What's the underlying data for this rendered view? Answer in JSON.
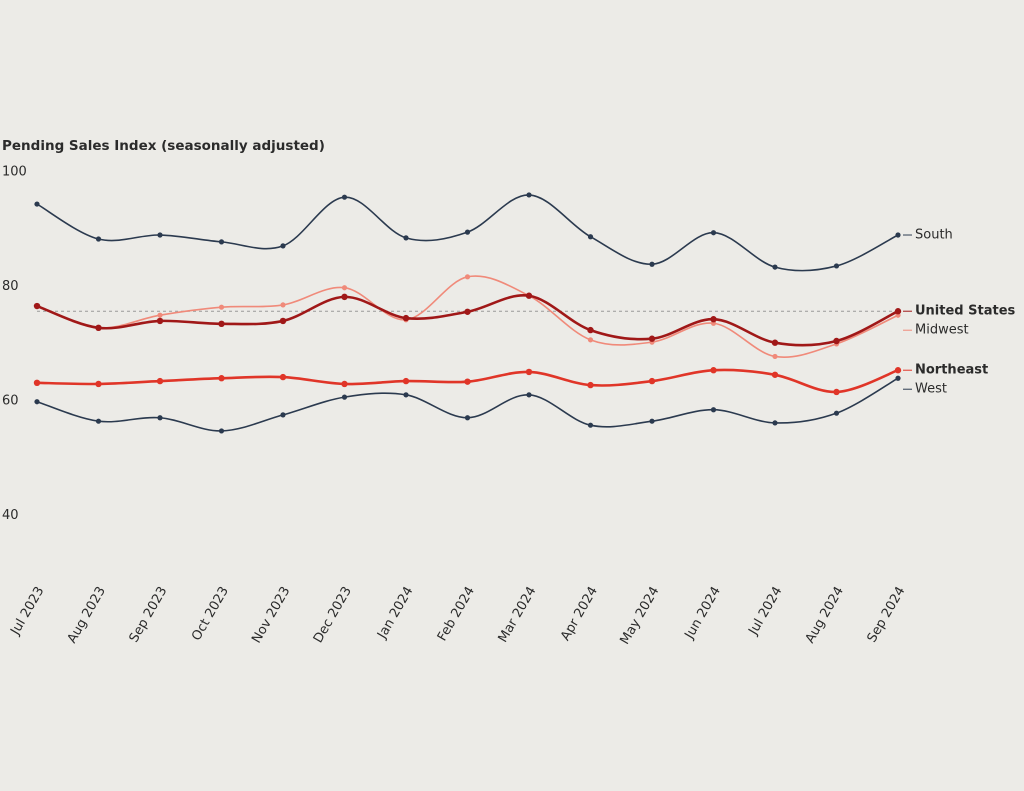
{
  "chart_data": {
    "type": "line",
    "title": "Pending Sales Index (seasonally adjusted)",
    "categories": [
      "Jul 2023",
      "Aug 2023",
      "Sep 2023",
      "Oct 2023",
      "Nov 2023",
      "Dec 2023",
      "Jan 2024",
      "Feb 2024",
      "Mar 2024",
      "Apr 2024",
      "May 2024",
      "Jun 2024",
      "Jul 2024",
      "Aug 2024",
      "Sep 2024"
    ],
    "series": [
      {
        "name": "South",
        "color": "#2b3a4f",
        "bold": false,
        "values": [
          94.4,
          88.3,
          89.0,
          87.8,
          87.1,
          95.6,
          88.5,
          89.5,
          96.0,
          88.7,
          83.9,
          89.4,
          83.4,
          83.6,
          89.0
        ]
      },
      {
        "name": "Midwest",
        "color": "#f08a7a",
        "bold": false,
        "values": [
          76.6,
          72.8,
          75.0,
          76.4,
          76.8,
          79.8,
          74.2,
          81.7,
          78.4,
          70.7,
          70.3,
          73.6,
          67.8,
          70.0,
          75.0
        ]
      },
      {
        "name": "United States",
        "color": "#a01818",
        "bold": true,
        "values": [
          76.6,
          72.8,
          74.0,
          73.5,
          74.0,
          78.2,
          74.5,
          75.6,
          78.4,
          72.4,
          70.9,
          74.3,
          70.2,
          70.5,
          75.7
        ]
      },
      {
        "name": "Northeast",
        "color": "#e03528",
        "bold": true,
        "values": [
          63.2,
          63.0,
          63.5,
          64.0,
          64.2,
          63.0,
          63.5,
          63.4,
          65.1,
          62.8,
          63.5,
          65.4,
          64.6,
          61.6,
          65.4
        ]
      },
      {
        "name": "West",
        "color": "#2b3a4f",
        "bold": false,
        "values": [
          59.9,
          56.5,
          57.1,
          54.8,
          57.6,
          60.7,
          61.1,
          57.1,
          61.1,
          55.8,
          56.5,
          58.5,
          56.2,
          57.9,
          64.0
        ]
      }
    ],
    "reference_line": 75.7,
    "ylim": [
      30,
      100
    ],
    "yticks": [
      40,
      60,
      80,
      100
    ],
    "grid": false
  }
}
